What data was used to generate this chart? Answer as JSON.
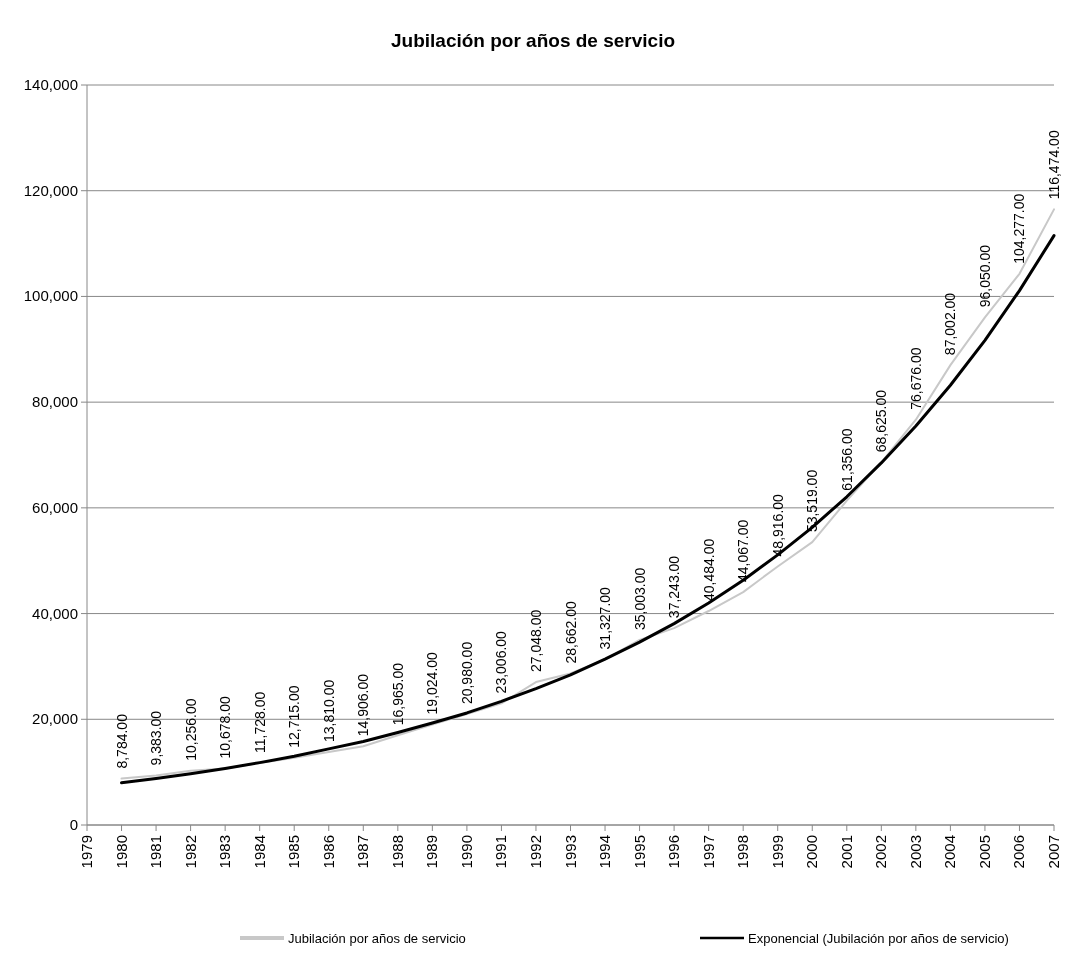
{
  "chart_data": {
    "type": "line",
    "title": "Jubilación por años de servicio",
    "x": [
      1980,
      1981,
      1982,
      1983,
      1984,
      1985,
      1986,
      1987,
      1988,
      1989,
      1990,
      1991,
      1992,
      1993,
      1994,
      1995,
      1996,
      1997,
      1998,
      1999,
      2000,
      2001,
      2002,
      2003,
      2004,
      2005,
      2006,
      2007
    ],
    "xlim": [
      1979,
      2007
    ],
    "xticks": [
      1979,
      1980,
      1981,
      1982,
      1983,
      1984,
      1985,
      1986,
      1987,
      1988,
      1989,
      1990,
      1991,
      1992,
      1993,
      1994,
      1995,
      1996,
      1997,
      1998,
      1999,
      2000,
      2001,
      2002,
      2003,
      2004,
      2005,
      2006,
      2007
    ],
    "ylim": [
      0,
      140000
    ],
    "yticks": [
      {
        "value": 0,
        "label": "0"
      },
      {
        "value": 20000,
        "label": "20,000"
      },
      {
        "value": 40000,
        "label": "40,000"
      },
      {
        "value": 60000,
        "label": "60,000"
      },
      {
        "value": 80000,
        "label": "80,000"
      },
      {
        "value": 100000,
        "label": "100,000"
      },
      {
        "value": 120000,
        "label": "120,000"
      },
      {
        "value": 140000,
        "label": "140,000"
      }
    ],
    "grid": "y",
    "legend": "bottom",
    "line_style": "solid",
    "series": [
      {
        "name": "Jubilación por años de servicio",
        "color": "#c8c8c8",
        "values": [
          8784,
          9383,
          10256,
          10678,
          11728,
          12715,
          13810,
          14906,
          16965,
          19024,
          20980,
          23006,
          27048,
          28662,
          31327,
          35003,
          37243,
          40484,
          44067,
          48916,
          53519,
          61356,
          68625,
          76676,
          87002,
          96050,
          104277,
          116474
        ],
        "value_labels": [
          "8,784.00",
          "9,383.00",
          "10,256.00",
          "10,678.00",
          "11,728.00",
          "12,715.00",
          "13,810.00",
          "14,906.00",
          "16,965.00",
          "19,024.00",
          "20,980.00",
          "23,006.00",
          "27,048.00",
          "28,662.00",
          "31,327.00",
          "35,003.00",
          "37,243.00",
          "40,484.00",
          "44,067.00",
          "48,916.00",
          "53,519.00",
          "61,356.00",
          "68,625.00",
          "76,676.00",
          "87,002.00",
          "96,050.00",
          "104,277.00",
          "116,474.00"
        ]
      },
      {
        "name": "Exponencial (Jubilación por años de servicio)",
        "type": "line",
        "color": "#000000",
        "x": [
          1980,
          1981,
          1982,
          1983,
          1984,
          1985,
          1986,
          1987,
          1988,
          1989,
          1990,
          1991,
          1992,
          1993,
          1994,
          1995,
          1996,
          1997,
          1998,
          1999,
          2000,
          2001,
          2002,
          2003,
          2004,
          2005,
          2006,
          2007
        ],
        "values": [
          8000,
          8800,
          9700,
          10700,
          11800,
          13000,
          14400,
          15800,
          17500,
          19300,
          21200,
          23400,
          25800,
          28400,
          31400,
          34600,
          38100,
          42000,
          46300,
          51100,
          56300,
          62100,
          68500,
          75500,
          83200,
          91700,
          101100,
          111500
        ]
      }
    ]
  }
}
